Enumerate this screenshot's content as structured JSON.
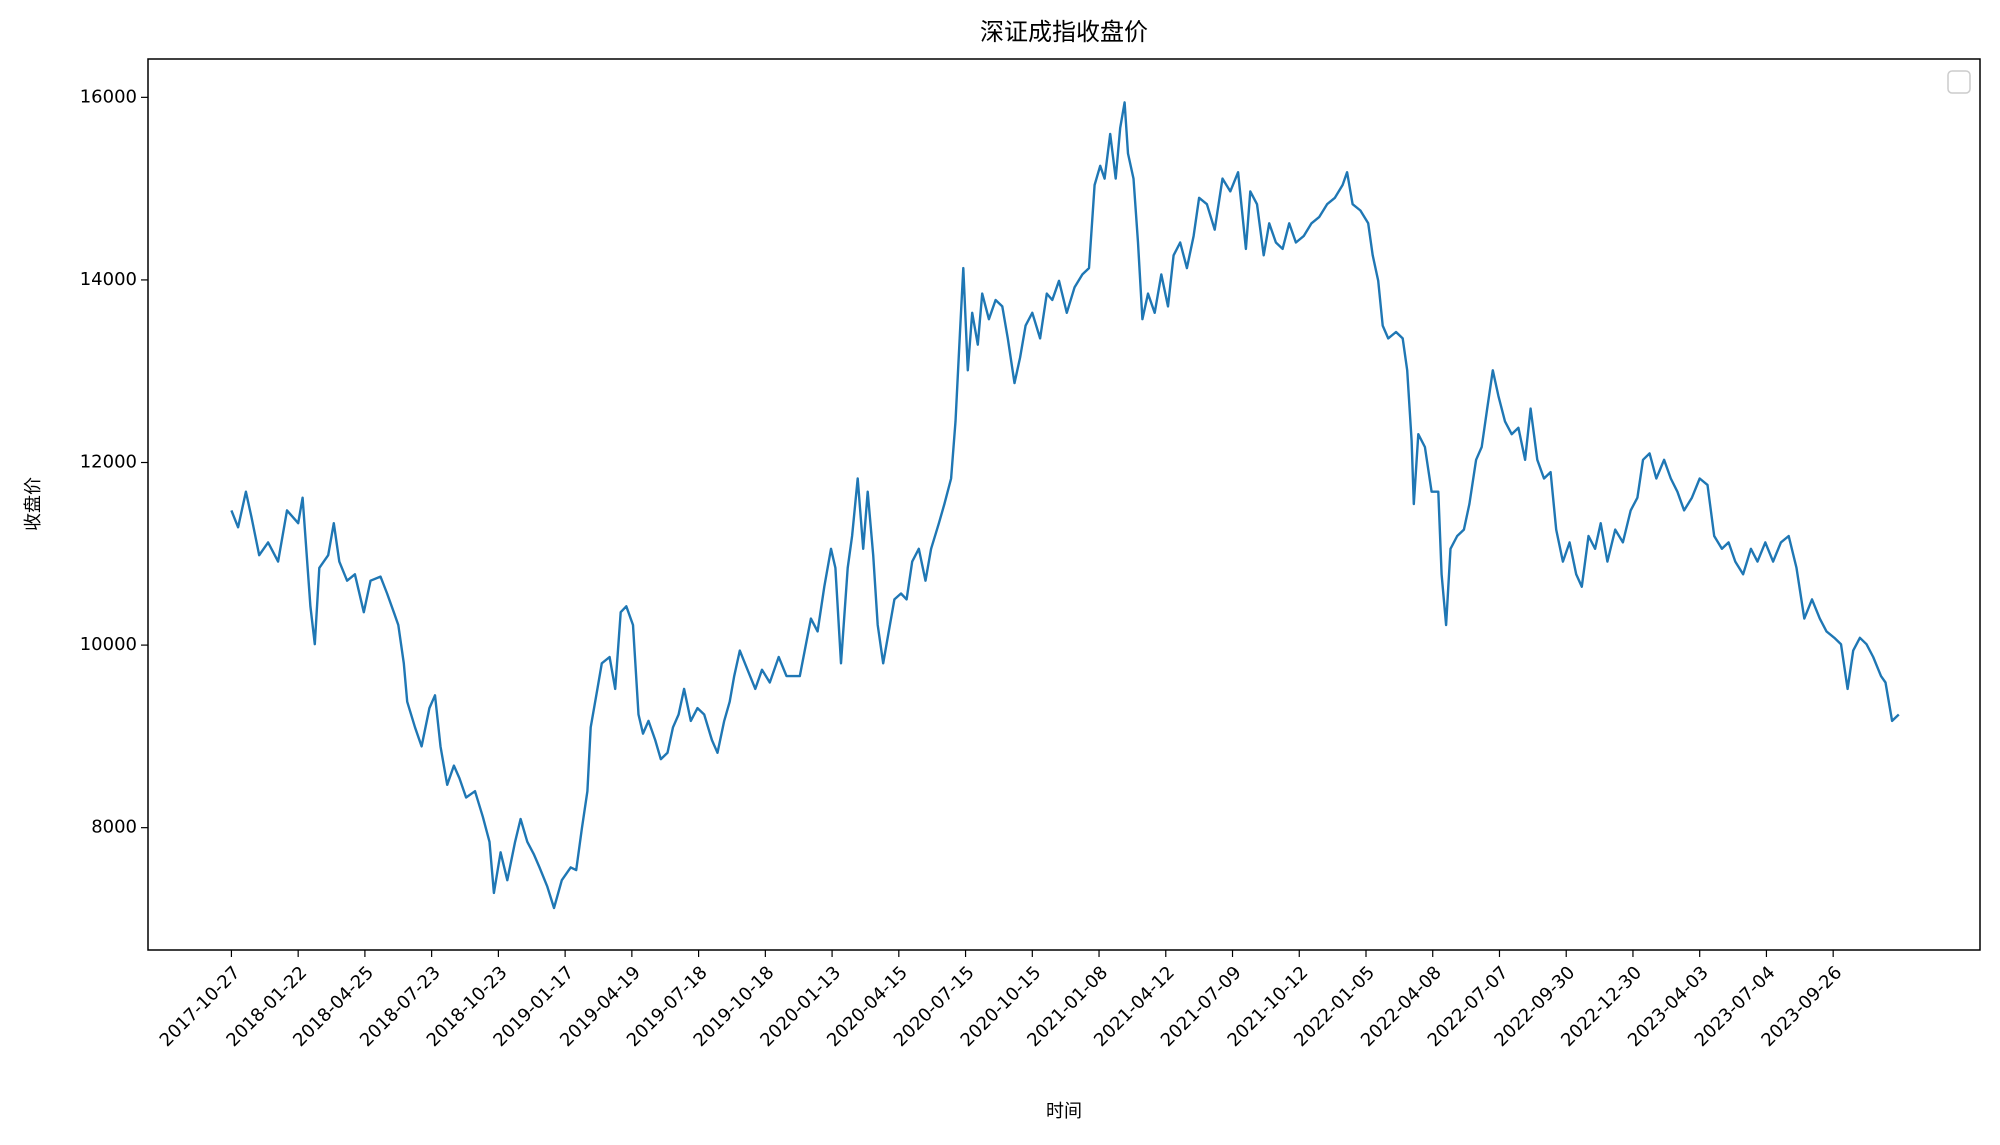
{
  "chart_data": {
    "type": "line",
    "title": "深证成指收盘价",
    "xlabel": "时间",
    "ylabel": "收盘价",
    "x": [
      0,
      6,
      13,
      18,
      25,
      33,
      42,
      50,
      60,
      64,
      71,
      75,
      79,
      87,
      92,
      97,
      104,
      111,
      119,
      125,
      134,
      140,
      146,
      150,
      155,
      158,
      165,
      171,
      178,
      183,
      188,
      194,
      200,
      205,
      211,
      219,
      226,
      232,
      236,
      242,
      248,
      255,
      260,
      266,
      272,
      277,
      284,
      290,
      297,
      305,
      310,
      315,
      320,
      323,
      329,
      333,
      340,
      345,
      350,
      355,
      361,
      366,
      370,
      375,
      381,
      386,
      392,
      397,
      402,
      407,
      413,
      419,
      425,
      432,
      437,
      443,
      448,
      452,
      457,
      464,
      471,
      477,
      484,
      492,
      499,
      506,
      511,
      521,
      527,
      533,
      539,
      543,
      548,
      554,
      558,
      563,
      568,
      572,
      577,
      581,
      586,
      592,
      596,
      602,
      607,
      612,
      618,
      624,
      629,
      636,
      641,
      647,
      651,
      655,
      658,
      662,
      666,
      671,
      675,
      681,
      687,
      693,
      698,
      704,
      709,
      714,
      720,
      727,
      733,
      738,
      744,
      751,
      758,
      765,
      771,
      776,
      781,
      785,
      790,
      795,
      799,
      803,
      806,
      811,
      815,
      819,
      824,
      830,
      836,
      842,
      847,
      853,
      859,
      865,
      870,
      877,
      884,
      891,
      898,
      905,
      912,
      916,
      922,
      928,
      933,
      939,
      945,
      951,
      957,
      964,
      971,
      978,
      985,
      992,
      999,
      1003,
      1008,
      1015,
      1022,
      1026,
      1031,
      1035,
      1040,
      1047,
      1053,
      1057,
      1061,
      1063,
      1067,
      1073,
      1079,
      1085,
      1088,
      1092,
      1096,
      1102,
      1108,
      1113,
      1119,
      1124,
      1129,
      1134,
      1139,
      1145,
      1151,
      1157,
      1163,
      1168,
      1174,
      1180,
      1186,
      1191,
      1197,
      1203,
      1209,
      1214,
      1220,
      1226,
      1231,
      1237,
      1244,
      1251,
      1258,
      1264,
      1269,
      1275,
      1281,
      1288,
      1294,
      1300,
      1306,
      1313,
      1320,
      1327,
      1333,
      1340,
      1346,
      1352,
      1359,
      1366,
      1372,
      1379,
      1386,
      1393,
      1400,
      1407,
      1414,
      1421,
      1428,
      1434,
      1441,
      1447,
      1453,
      1458,
      1464,
      1470,
      1476,
      1483,
      1487,
      1493,
      1499
    ],
    "series": [
      {
        "color": "#1f77b4",
        "values": [
          11475,
          11290,
          11680,
          11405,
          10985,
          11125,
          10915,
          11475,
          11335,
          11615,
          10425,
          10010,
          10845,
          10985,
          11335,
          10915,
          10705,
          10775,
          10360,
          10705,
          10750,
          10565,
          10360,
          10220,
          9800,
          9380,
          9100,
          8890,
          9310,
          9450,
          8890,
          8470,
          8680,
          8540,
          8330,
          8400,
          8120,
          7845,
          7285,
          7730,
          7425,
          7845,
          8095,
          7845,
          7705,
          7565,
          7355,
          7120,
          7425,
          7565,
          7535,
          7985,
          8400,
          9100,
          9520,
          9800,
          9870,
          9520,
          10360,
          10425,
          10220,
          9240,
          9030,
          9170,
          8960,
          8750,
          8820,
          9100,
          9240,
          9520,
          9170,
          9310,
          9240,
          8960,
          8820,
          9170,
          9380,
          9660,
          9940,
          9730,
          9520,
          9730,
          9590,
          9870,
          9660,
          9660,
          9660,
          10290,
          10150,
          10640,
          11055,
          10845,
          9800,
          10845,
          11195,
          11825,
          11055,
          11680,
          10985,
          10220,
          9800,
          10220,
          10500,
          10565,
          10500,
          10915,
          11055,
          10705,
          11055,
          11335,
          11545,
          11825,
          12450,
          13430,
          14130,
          13010,
          13640,
          13290,
          13850,
          13570,
          13780,
          13710,
          13360,
          12870,
          13150,
          13500,
          13640,
          13360,
          13850,
          13780,
          13990,
          13640,
          13920,
          14060,
          14130,
          15040,
          15250,
          15110,
          15600,
          15110,
          15665,
          15945,
          15385,
          15110,
          14410,
          13570,
          13850,
          13640,
          14060,
          13710,
          14270,
          14410,
          14130,
          14480,
          14900,
          14830,
          14550,
          15110,
          14970,
          15180,
          14340,
          14970,
          14830,
          14270,
          14620,
          14410,
          14340,
          14620,
          14410,
          14480,
          14620,
          14690,
          14830,
          14900,
          15040,
          15180,
          14830,
          14760,
          14620,
          14270,
          13990,
          13500,
          13360,
          13430,
          13360,
          13010,
          12240,
          11545,
          12310,
          12170,
          11680,
          11680,
          10775,
          10220,
          11055,
          11195,
          11265,
          11545,
          12030,
          12170,
          12590,
          13010,
          12730,
          12450,
          12310,
          12380,
          12030,
          12590,
          12030,
          11825,
          11895,
          11265,
          10915,
          11125,
          10775,
          10640,
          11195,
          11055,
          11335,
          10915,
          11265,
          11125,
          11475,
          11615,
          12030,
          12100,
          11825,
          12030,
          11825,
          11680,
          11475,
          11615,
          11825,
          11755,
          11195,
          11055,
          11125,
          10915,
          10775,
          11055,
          10915,
          11125,
          10915,
          11125,
          11195,
          10845,
          10290,
          10500,
          10290,
          10150,
          10080,
          10010,
          9520,
          9940,
          10080,
          10010,
          9870,
          9660,
          9590,
          9170,
          9240
        ]
      }
    ],
    "xlim": [
      -75,
      1572
    ],
    "ylim": [
      6660,
      16420
    ],
    "xticks": [
      {
        "value": 0,
        "label": "2017-10-27"
      },
      {
        "value": 60,
        "label": "2018-01-22"
      },
      {
        "value": 120,
        "label": "2018-04-25"
      },
      {
        "value": 180,
        "label": "2018-07-23"
      },
      {
        "value": 240,
        "label": "2018-10-23"
      },
      {
        "value": 300,
        "label": "2019-01-17"
      },
      {
        "value": 360,
        "label": "2019-04-19"
      },
      {
        "value": 420,
        "label": "2019-07-18"
      },
      {
        "value": 480,
        "label": "2019-10-18"
      },
      {
        "value": 540,
        "label": "2020-01-13"
      },
      {
        "value": 600,
        "label": "2020-04-15"
      },
      {
        "value": 660,
        "label": "2020-07-15"
      },
      {
        "value": 720,
        "label": "2020-10-15"
      },
      {
        "value": 780,
        "label": "2021-01-08"
      },
      {
        "value": 840,
        "label": "2021-04-12"
      },
      {
        "value": 900,
        "label": "2021-07-09"
      },
      {
        "value": 960,
        "label": "2021-10-12"
      },
      {
        "value": 1020,
        "label": "2022-01-05"
      },
      {
        "value": 1080,
        "label": "2022-04-08"
      },
      {
        "value": 1140,
        "label": "2022-07-07"
      },
      {
        "value": 1200,
        "label": "2022-09-30"
      },
      {
        "value": 1260,
        "label": "2022-12-30"
      },
      {
        "value": 1320,
        "label": "2023-04-03"
      },
      {
        "value": 1380,
        "label": "2023-07-04"
      },
      {
        "value": 1440,
        "label": "2023-09-26"
      }
    ],
    "yticks": [
      8000,
      10000,
      12000,
      14000,
      16000
    ],
    "grid": false,
    "legend": "upper right"
  }
}
